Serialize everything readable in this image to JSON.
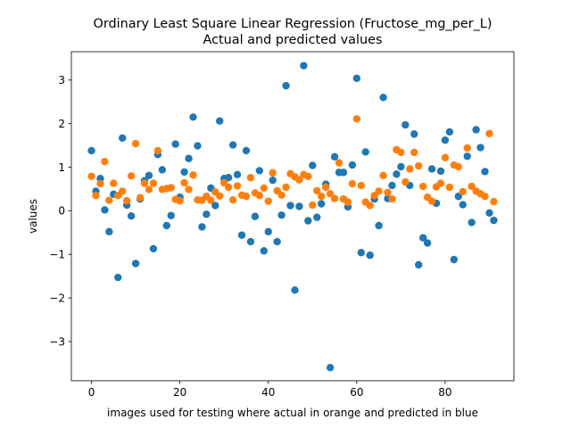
{
  "chart_data": {
    "type": "scatter",
    "title": "Ordinary Least Square Linear Regression (Fructose_mg_per_L)",
    "subtitle": "Actual and predicted values",
    "xlabel": "images used for testing where actual in orange and predicted in blue",
    "ylabel": "values",
    "xlim": [
      -4.55,
      95.55
    ],
    "ylim": [
      -3.9,
      3.65
    ],
    "xticks": [
      0,
      20,
      40,
      60,
      80
    ],
    "xtick_labels": [
      "0",
      "20",
      "40",
      "60",
      "80"
    ],
    "yticks": [
      -3,
      -2,
      -1,
      0,
      1,
      2,
      3
    ],
    "ytick_labels": [
      "−3",
      "−2",
      "−1",
      "0",
      "1",
      "2",
      "3"
    ],
    "grid": false,
    "colors": {
      "predicted": "#1f77b4",
      "actual": "#ff7f0e"
    },
    "series": [
      {
        "color": "#1f77b4",
        "x": [
          0,
          1,
          2,
          3,
          4,
          5,
          6,
          7,
          8,
          9,
          10,
          11,
          12,
          13,
          14,
          15,
          16,
          17,
          18,
          19,
          20,
          21,
          22,
          23,
          24,
          25,
          26,
          27,
          28,
          29,
          30,
          31,
          32,
          33,
          34,
          35,
          36,
          37,
          38,
          39,
          40,
          41,
          42,
          43,
          44,
          45,
          46,
          47,
          48,
          49,
          50,
          51,
          52,
          53,
          54,
          55,
          56,
          57,
          58,
          59,
          60,
          61,
          62,
          63,
          64,
          65,
          66,
          67,
          68,
          69,
          70,
          71,
          72,
          73,
          74,
          75,
          76,
          77,
          78,
          79,
          80,
          81,
          82,
          83,
          84,
          85,
          86,
          87,
          88,
          89,
          90,
          91
        ],
        "y": [
          1.38,
          0.45,
          0.74,
          0.02,
          -0.48,
          0.38,
          -1.53,
          1.67,
          0.13,
          -0.12,
          -1.21,
          0.27,
          0.69,
          0.81,
          -0.87,
          1.29,
          0.94,
          -0.34,
          -0.11,
          1.53,
          0.31,
          0.89,
          1.2,
          2.15,
          1.49,
          -0.37,
          -0.08,
          0.52,
          0.12,
          2.06,
          0.74,
          0.76,
          1.51,
          0.83,
          -0.56,
          1.38,
          -0.71,
          -0.13,
          0.92,
          -0.92,
          -0.48,
          0.7,
          -0.71,
          -0.1,
          2.87,
          0.12,
          -1.82,
          0.1,
          3.33,
          -0.23,
          1.04,
          -0.15,
          0.16,
          0.61,
          -3.6,
          1.24,
          0.88,
          0.88,
          0.09,
          1.05,
          3.04,
          -0.96,
          1.35,
          -1.02,
          0.27,
          -0.34,
          2.6,
          0.28,
          0.58,
          0.84,
          1.01,
          1.97,
          0.58,
          1.76,
          -1.24,
          -0.62,
          -0.74,
          0.96,
          0.17,
          0.91,
          1.62,
          1.81,
          -1.12,
          0.33,
          0.14,
          1.25,
          -0.27,
          1.86,
          1.45,
          0.9,
          -0.05,
          -0.22
        ]
      },
      {
        "color": "#ff7f0e",
        "x": [
          0,
          1,
          2,
          3,
          4,
          5,
          6,
          7,
          8,
          9,
          10,
          11,
          12,
          13,
          14,
          15,
          16,
          17,
          18,
          19,
          20,
          21,
          22,
          23,
          24,
          25,
          26,
          27,
          28,
          29,
          30,
          31,
          32,
          33,
          34,
          35,
          36,
          37,
          38,
          39,
          40,
          41,
          42,
          43,
          44,
          45,
          46,
          47,
          48,
          49,
          50,
          51,
          52,
          53,
          54,
          55,
          56,
          57,
          58,
          59,
          60,
          61,
          62,
          63,
          64,
          65,
          66,
          67,
          68,
          69,
          70,
          71,
          72,
          73,
          74,
          75,
          76,
          77,
          78,
          79,
          80,
          81,
          82,
          83,
          84,
          85,
          86,
          87,
          88,
          89,
          90,
          91
        ],
        "y": [
          0.79,
          0.35,
          0.62,
          1.13,
          0.24,
          0.63,
          0.35,
          0.45,
          0.23,
          0.8,
          1.54,
          0.3,
          0.63,
          0.49,
          0.63,
          1.38,
          0.49,
          0.51,
          0.53,
          0.26,
          0.23,
          0.64,
          0.49,
          0.82,
          0.25,
          0.24,
          0.33,
          0.24,
          0.43,
          0.34,
          0.64,
          0.54,
          0.25,
          0.57,
          0.36,
          0.33,
          0.76,
          0.41,
          0.35,
          0.52,
          0.22,
          0.87,
          0.46,
          0.36,
          0.54,
          0.85,
          0.78,
          0.71,
          0.83,
          0.79,
          0.13,
          0.46,
          0.33,
          0.54,
          0.39,
          0.28,
          1.1,
          0.27,
          0.2,
          0.62,
          2.11,
          0.58,
          0.2,
          0.12,
          0.35,
          0.45,
          0.81,
          0.42,
          0.27,
          1.4,
          1.34,
          0.66,
          0.96,
          1.34,
          1.03,
          0.56,
          0.31,
          0.22,
          0.55,
          0.63,
          1.22,
          0.54,
          1.05,
          1.01,
          0.44,
          1.44,
          0.56,
          0.45,
          0.39,
          0.33,
          1.77,
          0.21
        ]
      }
    ]
  }
}
